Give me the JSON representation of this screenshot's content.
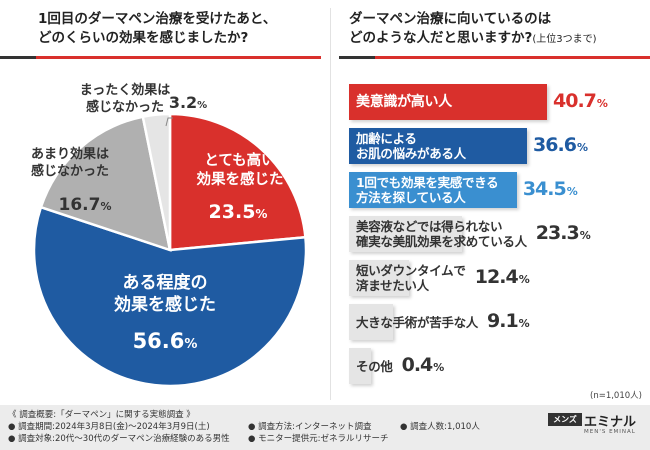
{
  "colors": {
    "red": "#d9302c",
    "blue": "#1f5ba2",
    "lightblue": "#3a8fd0",
    "gray": "#b0b0b0",
    "lightgray": "#e5e5e5",
    "accent": "#d9302c"
  },
  "left_question": {
    "line1": "1回目のダーマペン治療を受けたあと、",
    "line2": "どのくらいの効果を感じましたか?"
  },
  "right_question": {
    "line1": "ダーマペン治療に向いているのは",
    "line2": "どのような人だと思いますか?",
    "sub": "(上位3つまで)"
  },
  "chart_data": [
    {
      "type": "pie",
      "title": "1回目のダーマペン治療を受けたあと、どのくらいの効果を感じましたか?",
      "slices": [
        {
          "label_lines": [
            "とても高い",
            "効果を感じた"
          ],
          "value": 23.5,
          "value_text": "23.5",
          "pct": "%",
          "color": "#d9302c"
        },
        {
          "label_lines": [
            "ある程度の",
            "効果を感じた"
          ],
          "value": 56.6,
          "value_text": "56.6",
          "pct": "%",
          "color": "#1f5ba2"
        },
        {
          "label_lines": [
            "あまり効果は",
            "感じなかった"
          ],
          "value": 16.7,
          "value_text": "16.7",
          "pct": "%",
          "color": "#b0b0b0"
        },
        {
          "label_lines": [
            "まったく効果は",
            "感じなかった"
          ],
          "value": 3.2,
          "value_text": "3.2",
          "pct": "%",
          "color": "#e5e5e5"
        }
      ]
    },
    {
      "type": "bar",
      "orientation": "horizontal",
      "title": "ダーマペン治療に向いているのはどのような人だと思いますか?(上位3つまで)",
      "xlim": [
        0,
        40.7
      ],
      "bars": [
        {
          "label_lines": [
            "美意識が高い人"
          ],
          "value": 40.7,
          "value_text": "40.7",
          "pct": "%",
          "color": "#d9302c",
          "text_color": "#ffffff",
          "value_color": "#d9302c"
        },
        {
          "label_lines": [
            "加齢による",
            "お肌の悩みがある人"
          ],
          "value": 36.6,
          "value_text": "36.6",
          "pct": "%",
          "color": "#1f5ba2",
          "text_color": "#ffffff",
          "value_color": "#1f5ba2"
        },
        {
          "label_lines": [
            "1回でも効果を実感できる",
            "方法を探している人"
          ],
          "value": 34.5,
          "value_text": "34.5",
          "pct": "%",
          "color": "#3a8fd0",
          "text_color": "#ffffff",
          "value_color": "#3a8fd0"
        },
        {
          "label_lines": [
            "美容液などでは得られない",
            "確実な美肌効果を求めている人"
          ],
          "value": 23.3,
          "value_text": "23.3",
          "pct": "%",
          "color": "#e5e5e5",
          "text_color": "#333333",
          "value_color": "#333333"
        },
        {
          "label_lines": [
            "短いダウンタイムで",
            "済ませたい人"
          ],
          "value": 12.4,
          "value_text": "12.4",
          "pct": "%",
          "color": "#e5e5e5",
          "text_color": "#333333",
          "value_color": "#333333"
        },
        {
          "label_lines": [
            "大きな手術が苦手な人"
          ],
          "value": 9.1,
          "value_text": "9.1",
          "pct": "%",
          "color": "#e5e5e5",
          "text_color": "#333333",
          "value_color": "#333333"
        },
        {
          "label_lines": [
            "その他"
          ],
          "value": 0.4,
          "value_text": "0.4",
          "pct": "%",
          "color": "#e5e5e5",
          "text_color": "#333333",
          "value_color": "#333333"
        }
      ],
      "note": "(n=1,010人)"
    }
  ],
  "footer": {
    "overview": "《 調査概要:「ダーマペン」に関する実態調査 》",
    "period": "● 調査期間:2024年3月8日(金)〜2024年3月9日(土)",
    "target": "● 調査対象:20代〜30代のダーマペン治療経験のある男性",
    "method": "● 調査方法:インターネット調査",
    "monitor": "● モニター提供元:ゼネラルリサーチ",
    "count": "● 調査人数:1,010人"
  },
  "logo": {
    "box": "メンズ",
    "main": "エミナル",
    "sub": "MEN'S EMINAL"
  }
}
